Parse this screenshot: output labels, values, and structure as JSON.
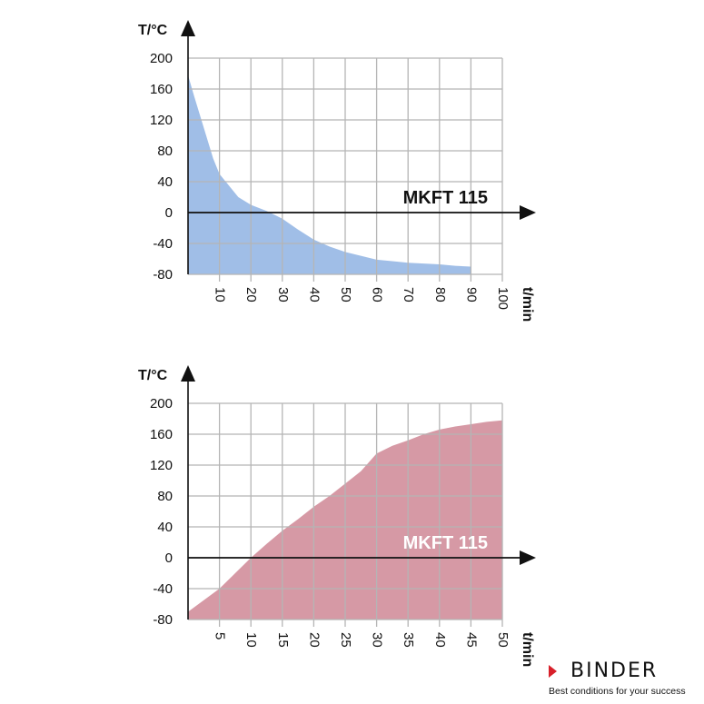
{
  "chart_data": [
    {
      "type": "area",
      "ylabel": "T/°C",
      "xlabel": "t/min",
      "series_label": "MKFT 115",
      "color": "#8fb3e3",
      "label_color": "#111111",
      "xlim": [
        0,
        100
      ],
      "ylim": [
        -80,
        200
      ],
      "xticks": [
        10,
        20,
        30,
        40,
        50,
        60,
        70,
        80,
        90,
        100
      ],
      "yticks": [
        200,
        160,
        120,
        80,
        40,
        0,
        -40,
        -80
      ],
      "grid": true,
      "x": [
        0,
        2,
        5,
        8,
        10,
        13,
        16,
        20,
        25,
        30,
        35,
        40,
        45,
        50,
        55,
        60,
        65,
        70,
        75,
        80,
        85,
        90
      ],
      "y": [
        178,
        150,
        110,
        70,
        50,
        35,
        20,
        10,
        2,
        -8,
        -22,
        -35,
        -44,
        -51,
        -56,
        -61,
        -63,
        -65,
        -66,
        -67,
        -69,
        -70
      ]
    },
    {
      "type": "area",
      "ylabel": "T/°C",
      "xlabel": "t/min",
      "series_label": "MKFT 115",
      "color": "#cf8795",
      "label_color": "#ffffff",
      "xlim": [
        0,
        50
      ],
      "ylim": [
        -80,
        200
      ],
      "xticks": [
        5,
        10,
        15,
        20,
        25,
        30,
        35,
        40,
        45,
        50
      ],
      "yticks": [
        200,
        160,
        120,
        80,
        40,
        0,
        -40,
        -80
      ],
      "grid": true,
      "x": [
        0,
        2.5,
        5,
        7.5,
        10,
        12.5,
        15,
        17.5,
        20,
        22.5,
        25,
        27.5,
        30,
        32.5,
        35,
        37.5,
        40,
        42.5,
        45,
        47.5,
        50
      ],
      "y": [
        -70,
        -55,
        -40,
        -20,
        0,
        18,
        35,
        50,
        66,
        80,
        96,
        112,
        135,
        145,
        152,
        160,
        166,
        170,
        173,
        176,
        178
      ]
    }
  ],
  "brand": {
    "name": "BINDER",
    "tagline": "Best conditions for your success",
    "color": "#d8202a"
  }
}
